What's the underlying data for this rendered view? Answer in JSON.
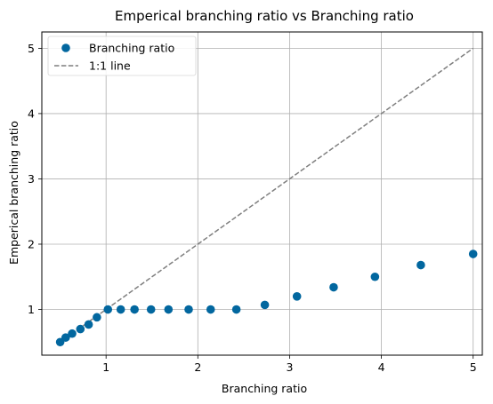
{
  "chart_data": {
    "type": "scatter",
    "title": "Emperical branching ratio vs Branching ratio",
    "xlabel": "Branching ratio",
    "ylabel": "Emperical branching ratio",
    "xlim": [
      0.3,
      5.1
    ],
    "ylim": [
      0.3,
      5.25
    ],
    "xticks": [
      1,
      2,
      3,
      4,
      5
    ],
    "yticks": [
      1,
      2,
      3,
      4,
      5
    ],
    "grid": true,
    "legend_position": "top-left",
    "series": [
      {
        "name": "Branching ratio",
        "kind": "scatter",
        "color": "#02679f",
        "x": [
          0.5,
          0.56,
          0.63,
          0.72,
          0.81,
          0.9,
          1.02,
          1.16,
          1.31,
          1.49,
          1.68,
          1.9,
          2.14,
          2.42,
          2.73,
          3.08,
          3.48,
          3.93,
          4.43,
          5.0
        ],
        "y": [
          0.5,
          0.57,
          0.63,
          0.7,
          0.77,
          0.88,
          1.0,
          1.0,
          1.0,
          1.0,
          1.0,
          1.0,
          1.0,
          1.0,
          1.07,
          1.2,
          1.34,
          1.5,
          1.68,
          1.85
        ]
      },
      {
        "name": "1:1 line",
        "kind": "line",
        "style": "dashed",
        "color": "#7f7f7f",
        "x": [
          0.5,
          5.0
        ],
        "y": [
          0.5,
          5.0
        ]
      }
    ]
  }
}
